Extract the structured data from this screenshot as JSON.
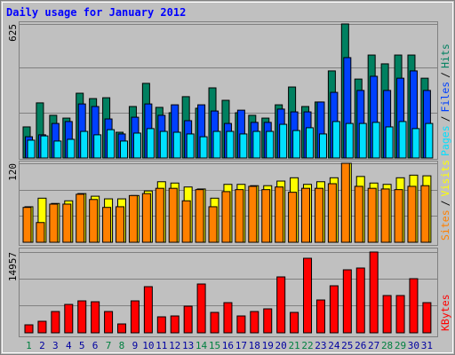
{
  "chart_data": [
    {
      "type": "bar",
      "title": "Daily usage for January 2012",
      "categories": [
        "1",
        "2",
        "3",
        "4",
        "5",
        "6",
        "7",
        "8",
        "9",
        "10",
        "11",
        "12",
        "13",
        "14",
        "15",
        "16",
        "17",
        "18",
        "19",
        "20",
        "21",
        "22",
        "23",
        "24",
        "25",
        "26",
        "27",
        "28",
        "29",
        "30",
        "31"
      ],
      "category_colors": [
        "#008040",
        "#0000a0",
        "#0000a0",
        "#0000a0",
        "#0000a0",
        "#0000a0",
        "#008040",
        "#008040",
        "#0000a0",
        "#0000a0",
        "#0000a0",
        "#0000a0",
        "#0000a0",
        "#008040",
        "#008040",
        "#0000a0",
        "#0000a0",
        "#0000a0",
        "#0000a0",
        "#0000a0",
        "#008040",
        "#008040",
        "#0000a0",
        "#0000a0",
        "#0000a0",
        "#0000a0",
        "#0000a0",
        "#008040",
        "#008040",
        "#0000a0",
        "#0000a0"
      ],
      "legend_separator": "/",
      "ylim": [
        0,
        625
      ],
      "yticks": [
        625
      ],
      "series": [
        {
          "name": "Hits",
          "color": "#008060",
          "values": [
            145,
            257,
            199,
            186,
            302,
            277,
            281,
            120,
            240,
            348,
            236,
            211,
            286,
            232,
            327,
            269,
            211,
            199,
            186,
            248,
            331,
            240,
            261,
            406,
            625,
            368,
            480,
            439,
            480,
            480,
            372
          ]
        },
        {
          "name": "Files",
          "color": "#0040ff",
          "values": [
            99,
            108,
            161,
            170,
            252,
            240,
            182,
            112,
            190,
            252,
            199,
            248,
            174,
            248,
            219,
            161,
            223,
            166,
            166,
            228,
            215,
            215,
            261,
            306,
            468,
            315,
            381,
            315,
            372,
            406,
            315
          ]
        },
        {
          "name": "Pages",
          "color": "#00e0ff",
          "values": [
            83,
            103,
            79,
            87,
            124,
            108,
            132,
            79,
            116,
            137,
            124,
            120,
            112,
            99,
            124,
            124,
            112,
            124,
            124,
            157,
            128,
            141,
            112,
            170,
            161,
            161,
            166,
            145,
            170,
            137,
            161
          ]
        }
      ]
    },
    {
      "type": "bar",
      "ylim": [
        0,
        120
      ],
      "yticks": [
        120
      ],
      "series": [
        {
          "name": "Visits",
          "color": "#ffff00",
          "values": [
            54,
            67,
            59,
            63,
            74,
            70,
            66,
            66,
            71,
            78,
            92,
            90,
            84,
            81,
            67,
            88,
            88,
            86,
            86,
            93,
            98,
            88,
            92,
            98,
            120,
            100,
            90,
            88,
            98,
            102,
            101
          ]
        },
        {
          "name": "Sites",
          "color": "#ff8000",
          "values": [
            53,
            30,
            58,
            58,
            73,
            65,
            53,
            54,
            71,
            74,
            82,
            82,
            63,
            80,
            54,
            77,
            80,
            85,
            80,
            84,
            76,
            82,
            82,
            89,
            120,
            85,
            82,
            81,
            80,
            85,
            86
          ]
        }
      ]
    },
    {
      "type": "bar",
      "ylim": [
        0,
        14957
      ],
      "yticks": [
        14957
      ],
      "series": [
        {
          "name": "KBytes",
          "color": "#ff0000",
          "values": [
            1479,
            2136,
            3944,
            5259,
            5916,
            5752,
            3944,
            1643,
            5916,
            8546,
            2958,
            3122,
            4930,
            9039,
            3780,
            5588,
            3122,
            3944,
            4437,
            10354,
            3780,
            13806,
            6081,
            8710,
            11669,
            11998,
            14957,
            6903,
            6903,
            10025,
            5588
          ]
        }
      ]
    }
  ]
}
